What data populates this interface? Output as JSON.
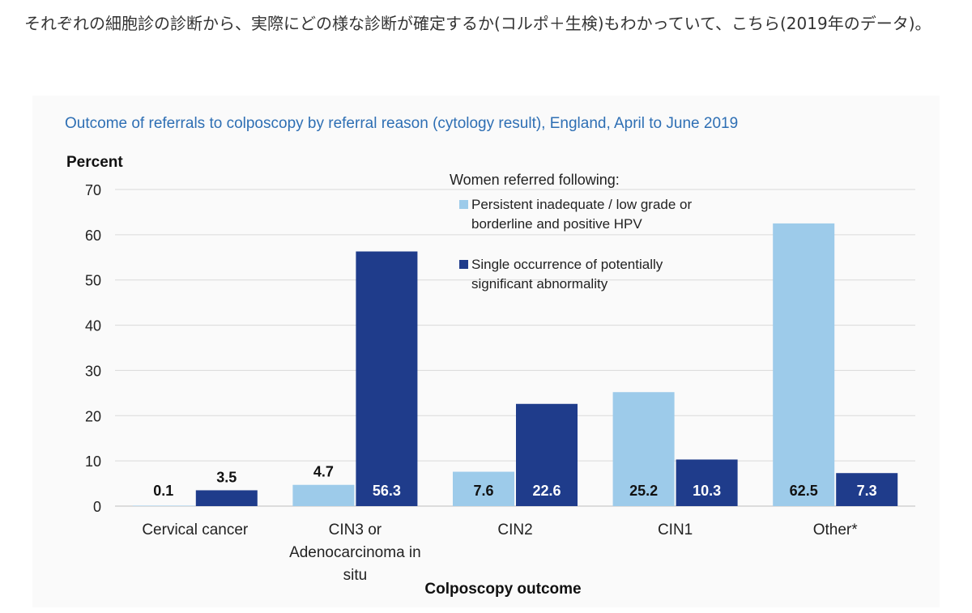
{
  "intro_text": "それぞれの細胞診の診断から、実際にどの様な診断が確定するか(コルポ＋生検)もわかっていて、こちら(2019年のデータ)。",
  "colors": {
    "series_light": "#9dcbea",
    "series_dark": "#1f3c8b",
    "title_blue": "#2e6fb4"
  },
  "chart_data": {
    "type": "bar",
    "title": "Outcome of referrals to colposcopy by referral reason (cytology result), England, April to June 2019",
    "ylabel": "Percent",
    "xlabel": "Colposcopy outcome",
    "ylim": [
      0,
      70
    ],
    "yticks": [
      "0",
      "10",
      "20",
      "30",
      "40",
      "50",
      "60",
      "70"
    ],
    "grid": true,
    "legend_position": "top-right",
    "legend_title": "Women referred following:",
    "categories": [
      [
        "Cervical cancer"
      ],
      [
        "CIN3 or",
        "Adenocarcinoma in",
        "situ"
      ],
      [
        "CIN2"
      ],
      [
        "CIN1"
      ],
      [
        "Other*"
      ]
    ],
    "series": [
      {
        "name_lines": [
          "Persistent inadequate / low grade or",
          "borderline and positive HPV"
        ],
        "color": "#9dcbea",
        "label_color": "#111111",
        "values": [
          0.1,
          4.7,
          7.6,
          25.2,
          62.5
        ],
        "labels": [
          "0.1",
          "4.7",
          "7.6",
          "25.2",
          "62.5"
        ]
      },
      {
        "name_lines": [
          "Single occurrence of potentially",
          "significant abnormality"
        ],
        "color": "#1f3c8b",
        "label_color": "#ffffff",
        "values": [
          3.5,
          56.3,
          22.6,
          10.3,
          7.3
        ],
        "labels": [
          "3.5",
          "56.3",
          "22.6",
          "10.3",
          "7.3"
        ]
      }
    ]
  }
}
